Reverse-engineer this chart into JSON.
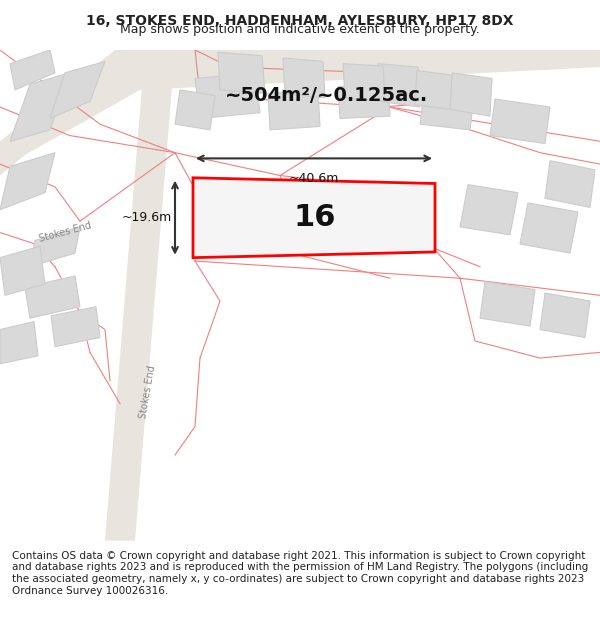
{
  "title_line1": "16, STOKES END, HADDENHAM, AYLESBURY, HP17 8DX",
  "title_line2": "Map shows position and indicative extent of the property.",
  "area_text": "~504m²/~0.125ac.",
  "width_label": "~40.6m",
  "height_label": "~19.6m",
  "number_label": "16",
  "footer_text": "Contains OS data © Crown copyright and database right 2021. This information is subject to Crown copyright and database rights 2023 and is reproduced with the permission of HM Land Registry. The polygons (including the associated geometry, namely x, y co-ordinates) are subject to Crown copyright and database rights 2023 Ordnance Survey 100026316.",
  "bg_color": "#f5f5f5",
  "map_bg": "#f0eeec",
  "building_fill": "#d9d9d9",
  "building_edge": "#cccccc",
  "road_color": "#e8e0d8",
  "road_line_color": "#c8bfb5",
  "highlight_fill": "#eeeeee",
  "highlight_edge": "#ff0000",
  "pink_line_color": "#f08080",
  "dim_line_color": "#333333",
  "street_label_color": "#888888",
  "footer_fontsize": 7.5,
  "title_fontsize": 10,
  "subtitle_fontsize": 9
}
